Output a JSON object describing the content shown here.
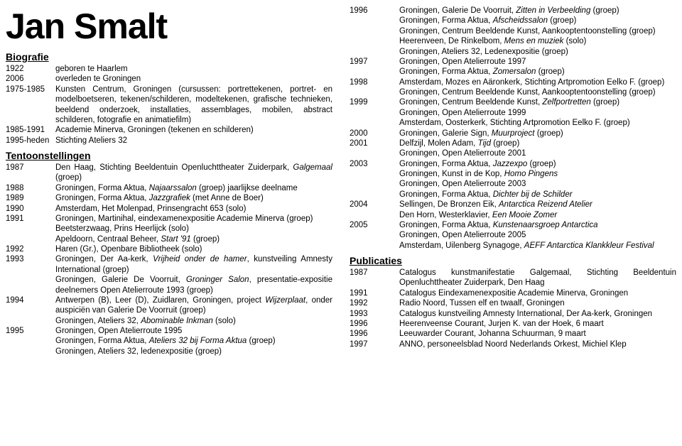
{
  "name": "Jan Smalt",
  "sections": {
    "bio": {
      "title": "Biografie",
      "entries": [
        {
          "year": "1922",
          "html": "geboren te Haarlem"
        },
        {
          "year": "2006",
          "html": "overleden te Groningen"
        },
        {
          "year": "1975-1985",
          "html": "Kunsten Centrum, Groningen (cursussen: portrettekenen, portret- en modelboetseren, tekenen/schilderen, modeltekenen, grafische technieken, beeldend onderzoek, installaties, assemblages, mobilen, abstract schilderen, fotografie en animatiefilm)"
        },
        {
          "year": "1985-1991",
          "html": "Academie Minerva, Groningen (tekenen en schilderen)"
        },
        {
          "year": "1995-heden",
          "html": "Stichting Ateliers 32"
        }
      ]
    },
    "exhib": {
      "title": "Tentoonstellingen",
      "entries": [
        {
          "year": "1987",
          "html": "Den Haag, Stichting Beeldentuin Openluchttheater Zuiderpark, <span class=\"italic\">Galgemaal</span> (groep)"
        },
        {
          "year": "1988",
          "html": "Groningen, Forma Aktua, <span class=\"italic\">Najaarssalon</span> (groep) jaarlijkse deelname"
        },
        {
          "year": "1989",
          "html": "Groningen, Forma Aktua, <span class=\"italic\">Jazzgrafiek</span> (met Anne de Boer)"
        },
        {
          "year": "1990",
          "html": "Amsterdam, Het Molenpad, Prinsengracht 653 (solo)"
        },
        {
          "year": "1991",
          "html": "Groningen, Martinihal, eindexamenexpositie Academie Minerva (groep)<br>Beetsterzwaag, Prins Heerlijck (solo)<br>Apeldoorn, Centraal Beheer, <span class=\"italic\">Start '91</span> (groep)"
        },
        {
          "year": "1992",
          "html": "Haren (Gr.), Openbare Bibliotheek (solo)"
        },
        {
          "year": "1993",
          "html": "Groningen, Der Aa-kerk, <span class=\"italic\">Vrijheid onder de hamer</span>, kunstveiling Amnesty International (groep)<br>Groningen, Galerie De Voorruit, <span class=\"italic\">Groninger Salon</span>, presentatie-expositie deelnemers Open Atelierroute 1993 (groep)"
        },
        {
          "year": "1994",
          "html": "Antwerpen (B), Leer (D), Zuidlaren, Groningen, project <span class=\"italic\">Wijzerplaat</span>, onder auspiciën van Galerie De Voorruit (groep)<br>Groningen, Ateliers 32, <span class=\"italic\">Abominable Inkman</span> (solo)"
        },
        {
          "year": "1995",
          "html": "Groningen, Open Atelierroute 1995<br>Groningen, Forma Aktua, <span class=\"italic\">Ateliers 32 bij Forma Aktua</span> (groep)<br>Groningen, Ateliers 32, ledenexpositie (groep)"
        }
      ]
    },
    "exhib2": {
      "entries": [
        {
          "year": "1996",
          "html": "Groningen, Galerie De Voorruit, <span class=\"italic\">Zitten in Verbeelding</span> (groep)<br>Groningen, Forma Aktua, <span class=\"italic\">Afscheidssalon</span> (groep)<br>Groningen, Centrum Beeldende Kunst, Aankooptentoonstelling (groep)<br>Heerenveen, De Rinkelbom, <span class=\"italic\">Mens en muziek</span> (solo)<br>Groningen, Ateliers 32, Ledenexpositie (groep)"
        },
        {
          "year": "1997",
          "html": "Groningen, Open Atelierroute 1997<br>Groningen, Forma Aktua, <span class=\"italic\">Zomersalon</span> (groep)"
        },
        {
          "year": "1998",
          "html": "Amsterdam, Mozes en Aäronkerk, Stichting Artpromotion Eelko F. (groep)<br>Groningen, Centrum Beeldende Kunst, Aankooptentoonstelling (groep)"
        },
        {
          "year": "1999",
          "html": "Groningen, Centrum Beeldende Kunst, <span class=\"italic\">Zelfportretten</span> (groep)<br>Groningen, Open Atelierroute 1999<br>Amsterdam, Oosterkerk, Stichting Artpromotion Eelko F. (groep)"
        },
        {
          "year": "2000",
          "html": "Groningen, Galerie Sign, <span class=\"italic\">Muurproject</span> (groep)"
        },
        {
          "year": "2001",
          "html": "Delfzijl, Molen Adam, <span class=\"italic\">Tijd</span> (groep)<br>Groningen, Open Atelierroute 2001"
        },
        {
          "year": "2003",
          "html": "Groningen, Forma Aktua, <span class=\"italic\">Jazzexpo</span> (groep)<br>Groningen, Kunst in de Kop, <span class=\"italic\">Homo Pingens</span><br>Groningen, Open Atelierroute 2003<br>Groningen, Forma Aktua, <span class=\"italic\">Dichter bij de Schilder</span>"
        },
        {
          "year": "2004",
          "html": "Sellingen, De Bronzen Eik, <span class=\"italic\">Antarctica Reizend Atelier</span><br>Den Horn, Westerklavier, <span class=\"italic\">Een Mooie Zomer</span>"
        },
        {
          "year": "2005",
          "html": "Groningen, Forma Aktua, <span class=\"italic\">Kunstenaarsgroep Antarctica</span><br>Groningen, Open Atelierroute 2005<br>Amsterdam, Uilenberg Synagoge, <span class=\"italic\">AEFF Antarctica Klankkleur Festival</span>"
        }
      ]
    },
    "pub": {
      "title": "Publicaties",
      "entries": [
        {
          "year": "1987",
          "html": "Catalogus kunstmanifestatie Galgemaal, Stichting Beeldentuin Openluchttheater Zuiderpark, Den Haag"
        },
        {
          "year": "1991",
          "html": "Catalogus Eindexamenexpositie Academie Minerva, Groningen"
        },
        {
          "year": "1992",
          "html": "Radio Noord, Tussen elf en twaalf, Groningen"
        },
        {
          "year": "1993",
          "html": "Catalogus kunstveiling Amnesty International, Der Aa-kerk, Groningen"
        },
        {
          "year": "1996",
          "html": "Heerenveense Courant, Jurjen K. van der Hoek, 6 maart"
        },
        {
          "year": "1996",
          "html": "Leeuwarder Courant, Johanna Schuurman, 9 maart"
        },
        {
          "year": "1997",
          "html": "ANNO, personeelsblad Noord Nederlands Orkest, Michiel Klep"
        }
      ]
    }
  }
}
